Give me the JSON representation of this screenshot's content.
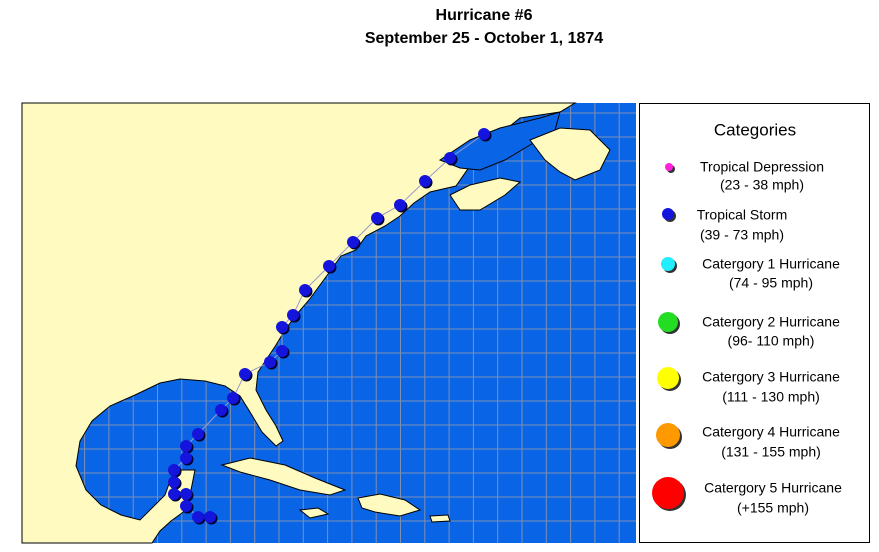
{
  "header": {
    "title": "Hurricane #6",
    "subtitle": "September 25 - October 1, 1874"
  },
  "legend": {
    "title": "Categories",
    "items": [
      {
        "label": "Tropical Depression",
        "range": "(23 - 38 mph)"
      },
      {
        "label": "Tropical Storm",
        "range": "(39 - 73 mph)"
      },
      {
        "label": "Catergory 1 Hurricane",
        "range": "(74 - 95 mph)"
      },
      {
        "label": "Catergory 2 Hurricane",
        "range": "(96- 110 mph)"
      },
      {
        "label": "Catergory 3 Hurricane",
        "range": "(111 - 130 mph)"
      },
      {
        "label": "Catergory 4 Hurricane",
        "range": "(131 - 155 mph)"
      },
      {
        "label": "Catergory 5 Hurricane",
        "range": "(+155 mph)"
      }
    ]
  }
}
